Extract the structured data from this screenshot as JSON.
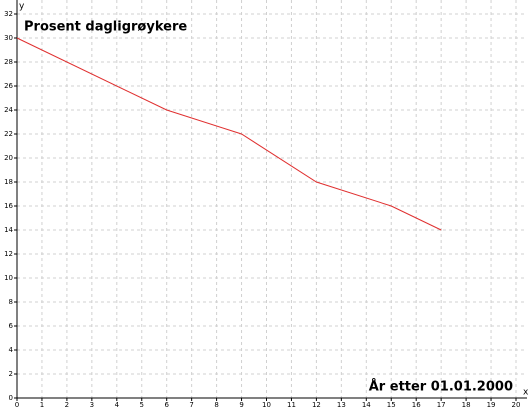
{
  "chart_data": {
    "type": "line",
    "title": "Prosent dagligrøykere",
    "annotation": "År etter 01.01.2000",
    "xlabel": "x",
    "ylabel": "y",
    "x": [
      0,
      6,
      9,
      12,
      15,
      17
    ],
    "series": [
      {
        "color": "#e03030",
        "values": [
          30,
          24,
          22,
          18,
          16,
          14
        ]
      }
    ],
    "xlim": [
      0,
      20
    ],
    "xticks": [
      0,
      1,
      2,
      3,
      4,
      5,
      6,
      7,
      8,
      9,
      10,
      11,
      12,
      13,
      14,
      15,
      16,
      17,
      18,
      19,
      20
    ],
    "ylim": [
      0,
      32
    ],
    "yticks": [
      0,
      2,
      4,
      6,
      8,
      10,
      12,
      14,
      16,
      18,
      20,
      22,
      24,
      26,
      28,
      30,
      32
    ],
    "grid": true
  }
}
